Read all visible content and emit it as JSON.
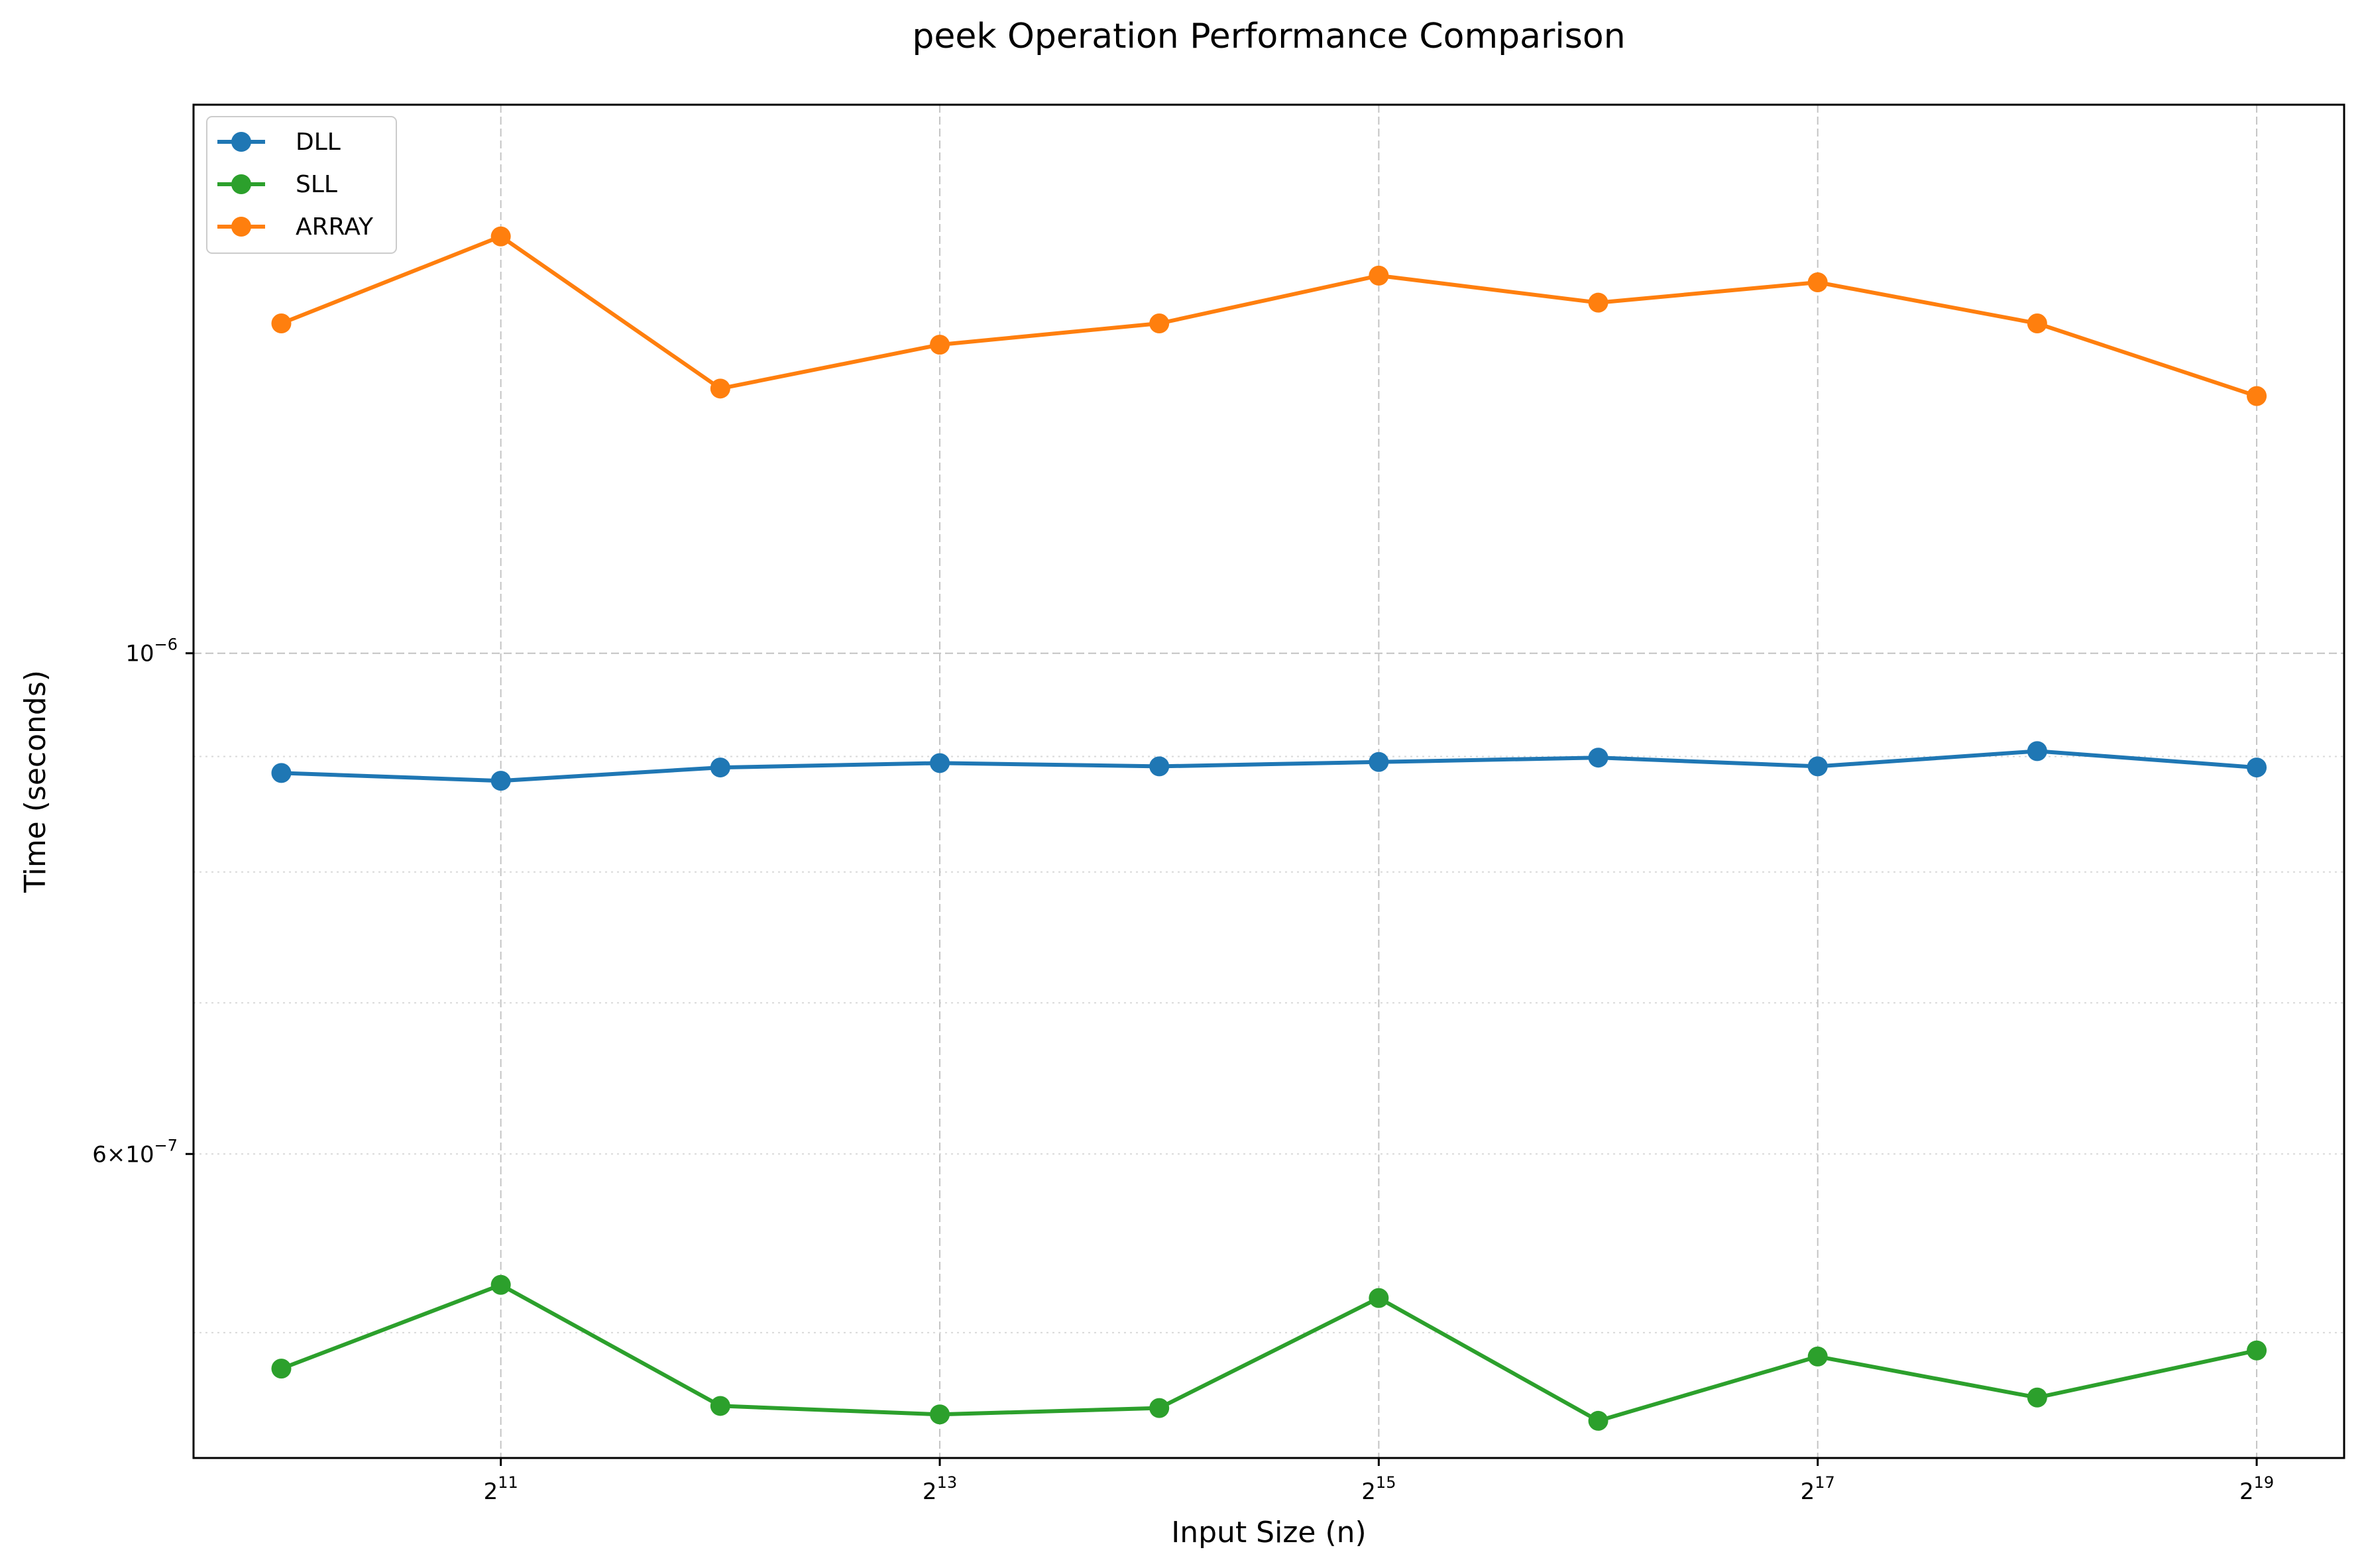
{
  "chart_data": {
    "type": "line",
    "title": "peek Operation Performance Comparison",
    "xlabel": "Input Size (n)",
    "ylabel": "Time (seconds)",
    "x_scale": "log2",
    "y_scale": "log10",
    "x": [
      1024,
      2048,
      4096,
      8192,
      16384,
      32768,
      65536,
      131072,
      262144,
      524288
    ],
    "x_ticks": [
      {
        "value": 2048,
        "base": "2",
        "exp": "11"
      },
      {
        "value": 8192,
        "base": "2",
        "exp": "13"
      },
      {
        "value": 32768,
        "base": "2",
        "exp": "15"
      },
      {
        "value": 131072,
        "base": "2",
        "exp": "17"
      },
      {
        "value": 524288,
        "base": "2",
        "exp": "19"
      }
    ],
    "y_ticks_major": [
      {
        "value": 1e-06,
        "mant": "",
        "base": "10",
        "exp": "−6"
      },
      {
        "value": 6e-07,
        "mant": "6×",
        "base": "10",
        "exp": "−7"
      }
    ],
    "y_minor_grid": [
      5e-07,
      6e-07,
      7e-07,
      8e-07,
      9e-07,
      1e-06
    ],
    "xlim": [
      776,
      691000
    ],
    "ylim": [
      4.4e-07,
      1.75e-06
    ],
    "grid": true,
    "legend_position": "upper-left",
    "series": [
      {
        "name": "DLL",
        "color": "#1f77b4",
        "values": [
          8.85e-07,
          8.78e-07,
          8.9e-07,
          8.94e-07,
          8.91e-07,
          8.95e-07,
          8.99e-07,
          8.91e-07,
          9.05e-07,
          8.9e-07
        ]
      },
      {
        "name": "SLL",
        "color": "#2ca02c",
        "values": [
          4.82e-07,
          5.25e-07,
          4.64e-07,
          4.6e-07,
          4.63e-07,
          5.18e-07,
          4.57e-07,
          4.88e-07,
          4.68e-07,
          4.91e-07
        ]
      },
      {
        "name": "ARRAY",
        "color": "#ff7f0e",
        "values": [
          1.4e-06,
          1.53e-06,
          1.31e-06,
          1.37e-06,
          1.4e-06,
          1.47e-06,
          1.43e-06,
          1.46e-06,
          1.4e-06,
          1.3e-06
        ]
      }
    ]
  }
}
